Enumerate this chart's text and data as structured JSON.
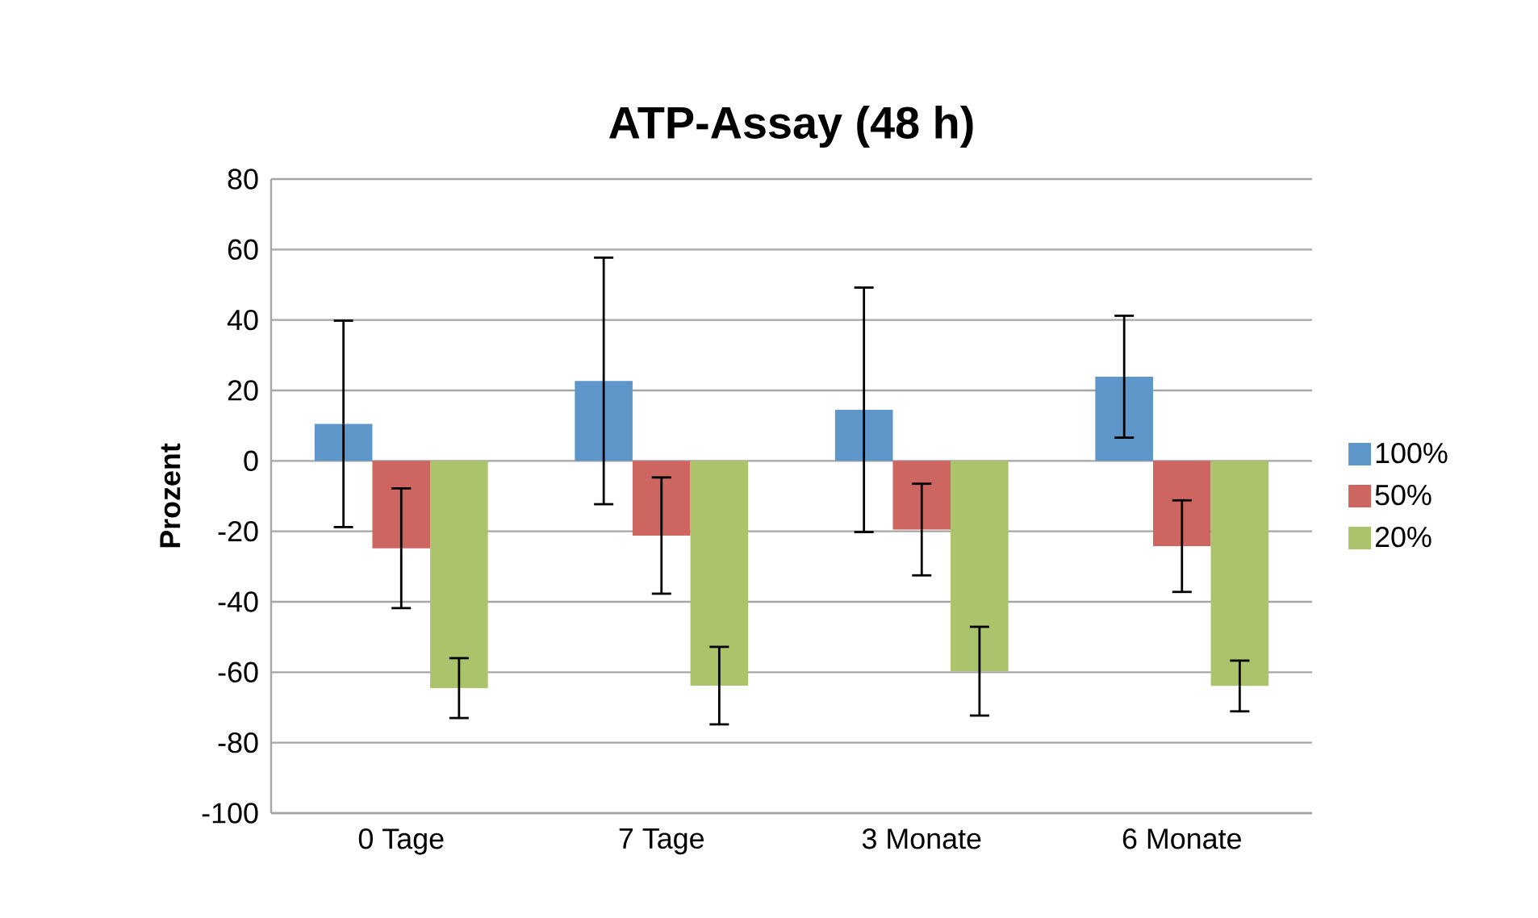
{
  "chart_data": {
    "type": "bar",
    "title": "ATP-Assay (48 h)",
    "ylabel": "Prozent",
    "categories": [
      "0 Tage",
      "7 Tage",
      "3 Monate",
      "6 Monate"
    ],
    "series": [
      {
        "name": "100%",
        "color": "#5f96c9",
        "values": [
          10.5,
          22.7,
          14.5,
          23.9
        ],
        "errors": [
          29.3,
          35,
          34.7,
          17.3
        ]
      },
      {
        "name": "50%",
        "color": "#cd6660",
        "values": [
          -24.8,
          -21.2,
          -19.5,
          -24.2
        ],
        "errors": [
          17,
          16.5,
          13,
          13
        ]
      },
      {
        "name": "20%",
        "color": "#abc46b",
        "values": [
          -64.5,
          -63.8,
          -59.7,
          -63.9
        ],
        "errors": [
          8.5,
          11,
          12.6,
          7.2
        ]
      }
    ],
    "ylim": [
      -100,
      80
    ],
    "yticks": [
      -100,
      -80,
      -60,
      -40,
      -20,
      0,
      20,
      40,
      60,
      80
    ],
    "grid": "y",
    "legend": "right"
  }
}
